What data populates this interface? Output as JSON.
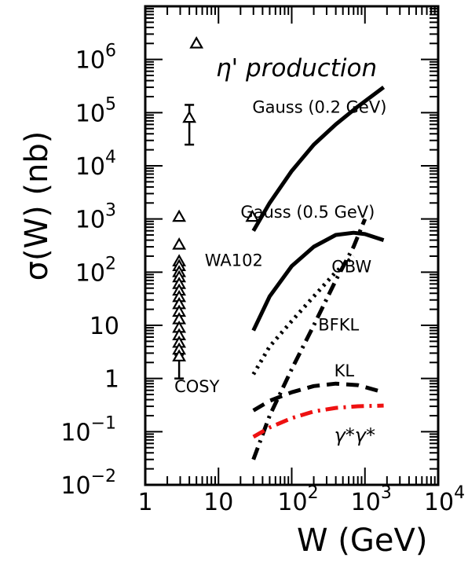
{
  "chart_data": {
    "type": "line",
    "title": "η' production",
    "xlabel": "W (GeV)",
    "ylabel": "σ(W) (nb)",
    "xscale": "log",
    "yscale": "log",
    "xlim": [
      1,
      10000
    ],
    "ylim": [
      0.01,
      10000000
    ],
    "x_ticks": [
      {
        "value": 1,
        "base": "1",
        "exp": ""
      },
      {
        "value": 10,
        "base": "10",
        "exp": ""
      },
      {
        "value": 100,
        "base": "10",
        "exp": "2"
      },
      {
        "value": 1000,
        "base": "10",
        "exp": "3"
      },
      {
        "value": 10000,
        "base": "10",
        "exp": "4"
      }
    ],
    "y_ticks": [
      {
        "value": 0.01,
        "base": "10",
        "exp": "−2"
      },
      {
        "value": 0.1,
        "base": "10",
        "exp": "−1"
      },
      {
        "value": 1,
        "base": "1",
        "exp": ""
      },
      {
        "value": 10,
        "base": "10",
        "exp": ""
      },
      {
        "value": 100,
        "base": "10",
        "exp": "2"
      },
      {
        "value": 1000,
        "base": "10",
        "exp": "3"
      },
      {
        "value": 10000,
        "base": "10",
        "exp": "4"
      },
      {
        "value": 100000,
        "base": "10",
        "exp": "5"
      },
      {
        "value": 1000000,
        "base": "10",
        "exp": "6"
      }
    ],
    "series": [
      {
        "name": "Gauss (0.2 GeV)",
        "style": "solid",
        "color": "#000000",
        "x": [
          30,
          50,
          100,
          200,
          400,
          800,
          1800
        ],
        "y": [
          600,
          2000,
          8000,
          25000,
          60000,
          130000,
          300000
        ]
      },
      {
        "name": "Gauss (0.5 GeV)",
        "style": "solid",
        "color": "#000000",
        "x": [
          30,
          50,
          100,
          200,
          400,
          700,
          1000,
          1800
        ],
        "y": [
          8,
          35,
          130,
          300,
          500,
          550,
          520,
          400
        ]
      },
      {
        "name": "OBW",
        "style": "dashdot",
        "color": "#000000",
        "x": [
          30,
          50,
          100,
          200,
          400,
          700,
          1000
        ],
        "y": [
          0.03,
          0.2,
          1.5,
          10,
          70,
          300,
          1000
        ]
      },
      {
        "name": "BFKL",
        "style": "dotted",
        "color": "#000000",
        "x": [
          30,
          50,
          100,
          200,
          400,
          700
        ],
        "y": [
          1.2,
          4,
          12,
          35,
          100,
          200
        ]
      },
      {
        "name": "KL",
        "style": "dashed",
        "color": "#000000",
        "x": [
          30,
          50,
          100,
          200,
          400,
          800,
          1800
        ],
        "y": [
          0.25,
          0.38,
          0.55,
          0.72,
          0.8,
          0.75,
          0.55
        ]
      },
      {
        "name": "γ*γ*",
        "style": "dashdot",
        "color": "#ee1111",
        "x": [
          30,
          50,
          100,
          200,
          400,
          800,
          1800
        ],
        "y": [
          0.08,
          0.12,
          0.18,
          0.24,
          0.28,
          0.3,
          0.31
        ]
      }
    ],
    "points": [
      {
        "x": 5.0,
        "y": 2000000,
        "marker": "triangle"
      },
      {
        "x": 4.0,
        "y": 80000,
        "marker": "triangle",
        "err_low": 25000,
        "err_high": 140000
      },
      {
        "x": 2.9,
        "y": 1100,
        "marker": "triangle"
      },
      {
        "x": 2.9,
        "y": 330,
        "marker": "triangle"
      },
      {
        "x": 2.9,
        "y": 160,
        "marker": "triangle"
      },
      {
        "x": 2.9,
        "y": 130,
        "marker": "triangle"
      },
      {
        "x": 2.9,
        "y": 100,
        "marker": "triangle"
      },
      {
        "x": 2.9,
        "y": 80,
        "marker": "triangle"
      },
      {
        "x": 2.9,
        "y": 60,
        "marker": "triangle"
      },
      {
        "x": 2.9,
        "y": 45,
        "marker": "triangle"
      },
      {
        "x": 2.9,
        "y": 34,
        "marker": "triangle"
      },
      {
        "x": 2.9,
        "y": 25,
        "marker": "triangle"
      },
      {
        "x": 2.9,
        "y": 18,
        "marker": "triangle"
      },
      {
        "x": 2.9,
        "y": 13,
        "marker": "triangle"
      },
      {
        "x": 2.9,
        "y": 9,
        "marker": "triangle"
      },
      {
        "x": 2.9,
        "y": 6.5,
        "marker": "triangle"
      },
      {
        "x": 2.9,
        "y": 4.7,
        "marker": "triangle"
      },
      {
        "x": 2.9,
        "y": 3.5,
        "marker": "triangle"
      },
      {
        "x": 2.9,
        "y": 2.6,
        "marker": "triangle",
        "err_low": 1.0,
        "err_high": 2.8
      },
      {
        "x": 29,
        "y": 1100,
        "marker": "triangle"
      }
    ],
    "annotations": [
      {
        "text": "Gauss (0.2 GeV)",
        "x": 29,
        "y": 100000
      },
      {
        "text": "Gauss (0.5 GeV)",
        "x": 20,
        "y": 1050
      },
      {
        "text": "WA102",
        "x": 6.5,
        "y": 130
      },
      {
        "text": "OBW",
        "x": 350,
        "y": 100
      },
      {
        "text": "BFKL",
        "x": 230,
        "y": 8
      },
      {
        "text": "KL",
        "x": 380,
        "y": 1.1
      },
      {
        "text": "γ*γ*",
        "x": 380,
        "y": 0.065
      },
      {
        "text": "COSY",
        "x": 2.5,
        "y": 0.55
      }
    ]
  }
}
